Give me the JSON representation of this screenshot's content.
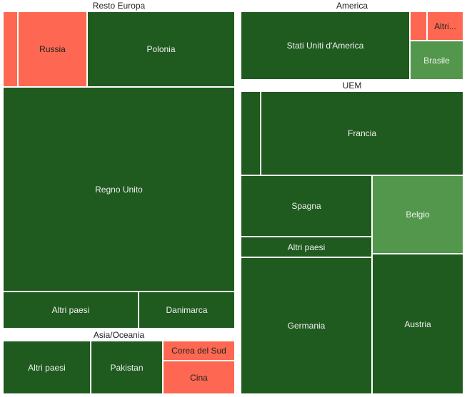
{
  "colors": {
    "dark": "#1f5a1f",
    "light": "#52974b",
    "red": "#fe6852",
    "label_on_green": "#f0f0f0",
    "label_on_red": "#222222"
  },
  "chart_data": {
    "type": "treemap",
    "groups": [
      {
        "name": "Resto Europa",
        "items": [
          {
            "label": "",
            "value": 2,
            "color": "red"
          },
          {
            "label": "Russia",
            "value": 10,
            "color": "red"
          },
          {
            "label": "Polonia",
            "value": 21,
            "color": "dark"
          },
          {
            "label": "Regno Unito",
            "value": 93,
            "color": "dark"
          },
          {
            "label": "Altri paesi",
            "value": 10,
            "color": "dark"
          },
          {
            "label": "Danimarca",
            "value": 7,
            "color": "dark"
          }
        ]
      },
      {
        "name": "Asia/Oceania",
        "items": [
          {
            "label": "Altri paesi",
            "value": 9,
            "color": "dark"
          },
          {
            "label": "Pakistan",
            "value": 7,
            "color": "dark"
          },
          {
            "label": "Corea del Sud",
            "value": 3,
            "color": "red"
          },
          {
            "label": "Cina",
            "value": 4.5,
            "color": "red"
          }
        ]
      },
      {
        "name": "America",
        "items": [
          {
            "label": "Stati Uniti d'America",
            "value": 23,
            "color": "dark"
          },
          {
            "label": "",
            "value": 1,
            "color": "red"
          },
          {
            "label": "Altri...",
            "value": 2,
            "color": "red"
          },
          {
            "label": "Brasile",
            "value": 3.5,
            "color": "light"
          }
        ]
      },
      {
        "name": "UEM",
        "items": [
          {
            "label": "",
            "value": 3.5,
            "color": "dark"
          },
          {
            "label": "Francia",
            "value": 33,
            "color": "dark"
          },
          {
            "label": "Spagna",
            "value": 18,
            "color": "dark"
          },
          {
            "label": "Belgio",
            "value": 14,
            "color": "light"
          },
          {
            "label": "Altri paesi",
            "value": 6,
            "color": "dark"
          },
          {
            "label": "Germania",
            "value": 40,
            "color": "dark"
          },
          {
            "label": "Austria",
            "value": 28,
            "color": "dark"
          }
        ]
      }
    ]
  }
}
